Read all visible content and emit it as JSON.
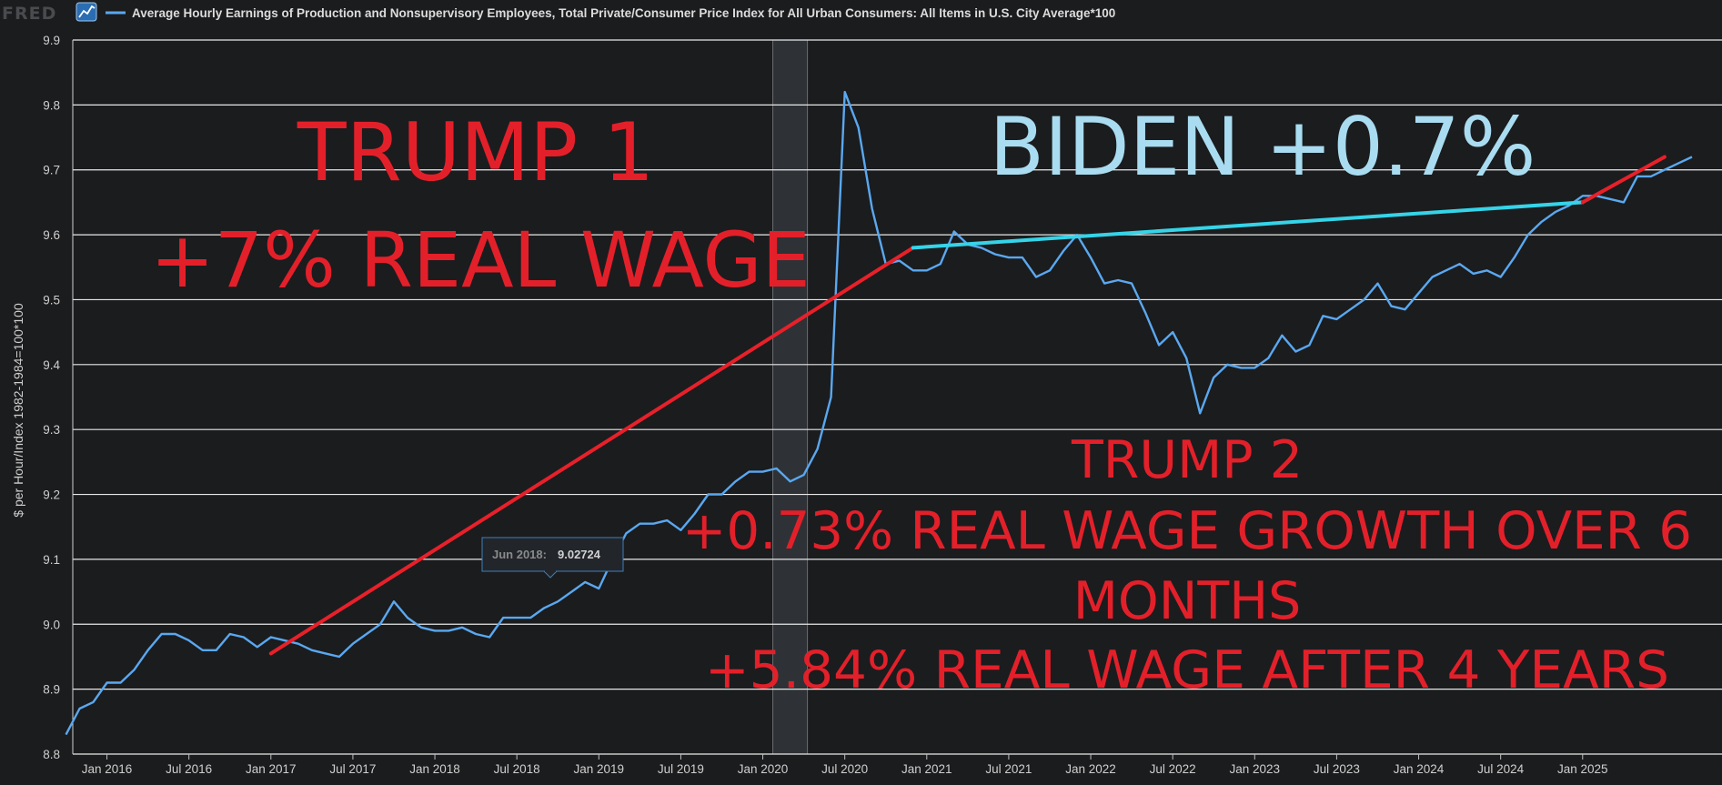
{
  "header": {
    "logo": "FRED",
    "series_title": "Average Hourly Earnings of Production and Nonsupervisory Employees, Total Private/Consumer Price Index for All Urban Consumers: All Items in U.S. City Average*100"
  },
  "colors": {
    "background": "#1b1c1e",
    "series": "#5aa8f0",
    "gridline": "#e8e8e8",
    "trend_red": "#e8202a",
    "trend_cyan": "#35d4e8",
    "annotation_red": "#e3202a",
    "annotation_blue": "#a9dcf0",
    "recession_shade": "#2e3236"
  },
  "tooltip": {
    "label": "Jun 2018:",
    "value": "9.02724"
  },
  "annotations": {
    "trump1_line1": "TRUMP 1",
    "trump1_line2": "+7% REAL WAGE",
    "biden": "BIDEN +0.7%",
    "trump2_line1": "TRUMP 2",
    "trump2_line2": "+0.73% REAL WAGE GROWTH OVER 6",
    "trump2_line3": "MONTHS",
    "trump2_line4": "+5.84% REAL WAGE AFTER 4 YEARS"
  },
  "chart_data": {
    "type": "line",
    "title": "Average Hourly Earnings of Production and Nonsupervisory Employees, Total Private/Consumer Price Index for All Urban Consumers: All Items in U.S. City Average*100",
    "ylabel": "$ per Hour/Index 1982-1984=100*100",
    "xlabel": "",
    "ylim": [
      8.8,
      9.9
    ],
    "x_range": [
      "2015-10",
      "2025-11"
    ],
    "y_ticks": [
      "8.8",
      "8.9",
      "9.0",
      "9.1",
      "9.2",
      "9.3",
      "9.4",
      "9.5",
      "9.6",
      "9.7",
      "9.8",
      "9.9"
    ],
    "x_ticks": [
      {
        "date": "2016-01",
        "label": "Jan 2016"
      },
      {
        "date": "2016-07",
        "label": "Jul 2016"
      },
      {
        "date": "2017-01",
        "label": "Jan 2017"
      },
      {
        "date": "2017-07",
        "label": "Jul 2017"
      },
      {
        "date": "2018-01",
        "label": "Jan 2018"
      },
      {
        "date": "2018-07",
        "label": "Jul 2018"
      },
      {
        "date": "2019-01",
        "label": "Jan 2019"
      },
      {
        "date": "2019-07",
        "label": "Jul 2019"
      },
      {
        "date": "2020-01",
        "label": "Jan 2020"
      },
      {
        "date": "2020-07",
        "label": "Jul 2020"
      },
      {
        "date": "2021-01",
        "label": "Jan 2021"
      },
      {
        "date": "2021-07",
        "label": "Jul 2021"
      },
      {
        "date": "2022-01",
        "label": "Jan 2022"
      },
      {
        "date": "2022-07",
        "label": "Jul 2022"
      },
      {
        "date": "2023-01",
        "label": "Jan 2023"
      },
      {
        "date": "2023-07",
        "label": "Jul 2023"
      },
      {
        "date": "2024-01",
        "label": "Jan 2024"
      },
      {
        "date": "2024-07",
        "label": "Jul 2024"
      },
      {
        "date": "2025-01",
        "label": "Jan 2025"
      }
    ],
    "grid": true,
    "recession": {
      "start": "2020-02",
      "end": "2020-04"
    },
    "series": [
      {
        "name": "Average Hourly Earnings of Production and Nonsupervisory Employees, Total Private/Consumer Price Index for All Urban Consumers: All Items in U.S. City Average*100",
        "color": "#5aa8f0",
        "x": [
          "2015-10",
          "2015-11",
          "2015-12",
          "2016-01",
          "2016-02",
          "2016-03",
          "2016-04",
          "2016-05",
          "2016-06",
          "2016-07",
          "2016-08",
          "2016-09",
          "2016-10",
          "2016-11",
          "2016-12",
          "2017-01",
          "2017-02",
          "2017-03",
          "2017-04",
          "2017-05",
          "2017-06",
          "2017-07",
          "2017-08",
          "2017-09",
          "2017-10",
          "2017-11",
          "2017-12",
          "2018-01",
          "2018-02",
          "2018-03",
          "2018-04",
          "2018-05",
          "2018-06",
          "2018-07",
          "2018-08",
          "2018-09",
          "2018-10",
          "2018-11",
          "2018-12",
          "2019-01",
          "2019-02",
          "2019-03",
          "2019-04",
          "2019-05",
          "2019-06",
          "2019-07",
          "2019-08",
          "2019-09",
          "2019-10",
          "2019-11",
          "2019-12",
          "2020-01",
          "2020-02",
          "2020-03",
          "2020-04",
          "2020-05",
          "2020-06",
          "2020-07",
          "2020-08",
          "2020-09",
          "2020-10",
          "2020-11",
          "2020-12",
          "2021-01",
          "2021-02",
          "2021-03",
          "2021-04",
          "2021-05",
          "2021-06",
          "2021-07",
          "2021-08",
          "2021-09",
          "2021-10",
          "2021-11",
          "2021-12",
          "2022-01",
          "2022-02",
          "2022-03",
          "2022-04",
          "2022-05",
          "2022-06",
          "2022-07",
          "2022-08",
          "2022-09",
          "2022-10",
          "2022-11",
          "2022-12",
          "2023-01",
          "2023-02",
          "2023-03",
          "2023-04",
          "2023-05",
          "2023-06",
          "2023-07",
          "2023-08",
          "2023-09",
          "2023-10",
          "2023-11",
          "2023-12",
          "2024-01",
          "2024-02",
          "2024-03",
          "2024-04",
          "2024-05",
          "2024-06",
          "2024-07",
          "2024-08",
          "2024-09",
          "2024-10",
          "2024-11",
          "2024-12",
          "2025-01",
          "2025-02",
          "2025-03",
          "2025-04",
          "2025-05",
          "2025-06",
          "2025-07",
          "2025-08",
          "2025-09"
        ],
        "values": [
          8.83,
          8.87,
          8.88,
          8.91,
          8.91,
          8.93,
          8.96,
          8.985,
          8.985,
          8.975,
          8.96,
          8.96,
          8.985,
          8.98,
          8.965,
          8.98,
          8.975,
          8.97,
          8.96,
          8.955,
          8.95,
          8.97,
          8.985,
          9.0,
          9.035,
          9.01,
          8.995,
          8.99,
          8.99,
          8.995,
          8.985,
          8.98,
          9.01,
          9.01,
          9.01,
          9.025,
          9.035,
          9.05,
          9.065,
          9.055,
          9.1,
          9.14,
          9.155,
          9.155,
          9.16,
          9.145,
          9.17,
          9.2,
          9.2,
          9.22,
          9.235,
          9.235,
          9.24,
          9.22,
          9.23,
          9.27,
          9.35,
          9.82,
          9.765,
          9.64,
          9.555,
          9.56,
          9.545,
          9.545,
          9.555,
          9.605,
          9.585,
          9.58,
          9.57,
          9.565,
          9.565,
          9.535,
          9.545,
          9.575,
          9.6,
          9.565,
          9.525,
          9.53,
          9.525,
          9.48,
          9.43,
          9.45,
          9.41,
          9.325,
          9.38,
          9.4,
          9.395,
          9.395,
          9.41,
          9.445,
          9.42,
          9.43,
          9.475,
          9.47,
          9.485,
          9.5,
          9.525,
          9.49,
          9.485,
          9.51,
          9.535,
          9.545,
          9.555,
          9.54,
          9.545,
          9.535,
          9.565,
          9.6,
          9.62,
          9.635,
          9.645,
          9.66,
          9.66,
          9.655,
          9.65,
          9.69,
          9.69,
          9.7,
          9.71,
          9.72
        ]
      }
    ],
    "trend_lines": [
      {
        "color": "#e8202a",
        "from": {
          "x": "2017-01",
          "y": 8.955
        },
        "to": {
          "x": "2020-12",
          "y": 9.58
        }
      },
      {
        "color": "#35d4e8",
        "from": {
          "x": "2020-12",
          "y": 9.58
        },
        "to": {
          "x": "2025-01",
          "y": 9.65
        }
      },
      {
        "color": "#e8202a",
        "from": {
          "x": "2025-01",
          "y": 9.65
        },
        "to": {
          "x": "2025-07",
          "y": 9.72
        }
      }
    ]
  }
}
